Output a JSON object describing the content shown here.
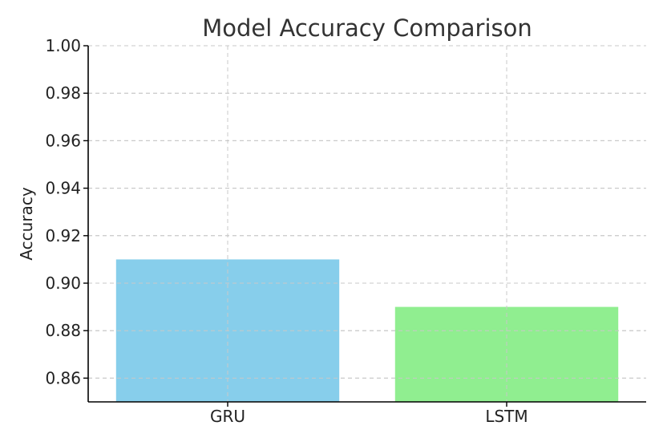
{
  "chart_data": {
    "type": "bar",
    "title": "Model Accuracy Comparison",
    "xlabel": "",
    "ylabel": "Accuracy",
    "categories": [
      "GRU",
      "LSTM"
    ],
    "values": [
      0.91,
      0.89
    ],
    "colors": [
      "#87CEEB",
      "#90EE90"
    ],
    "ylim": [
      0.85,
      1.0
    ],
    "yticks": [
      "0.86",
      "0.88",
      "0.90",
      "0.92",
      "0.94",
      "0.96",
      "0.98",
      "1.00"
    ],
    "grid": true,
    "legend": "none"
  }
}
